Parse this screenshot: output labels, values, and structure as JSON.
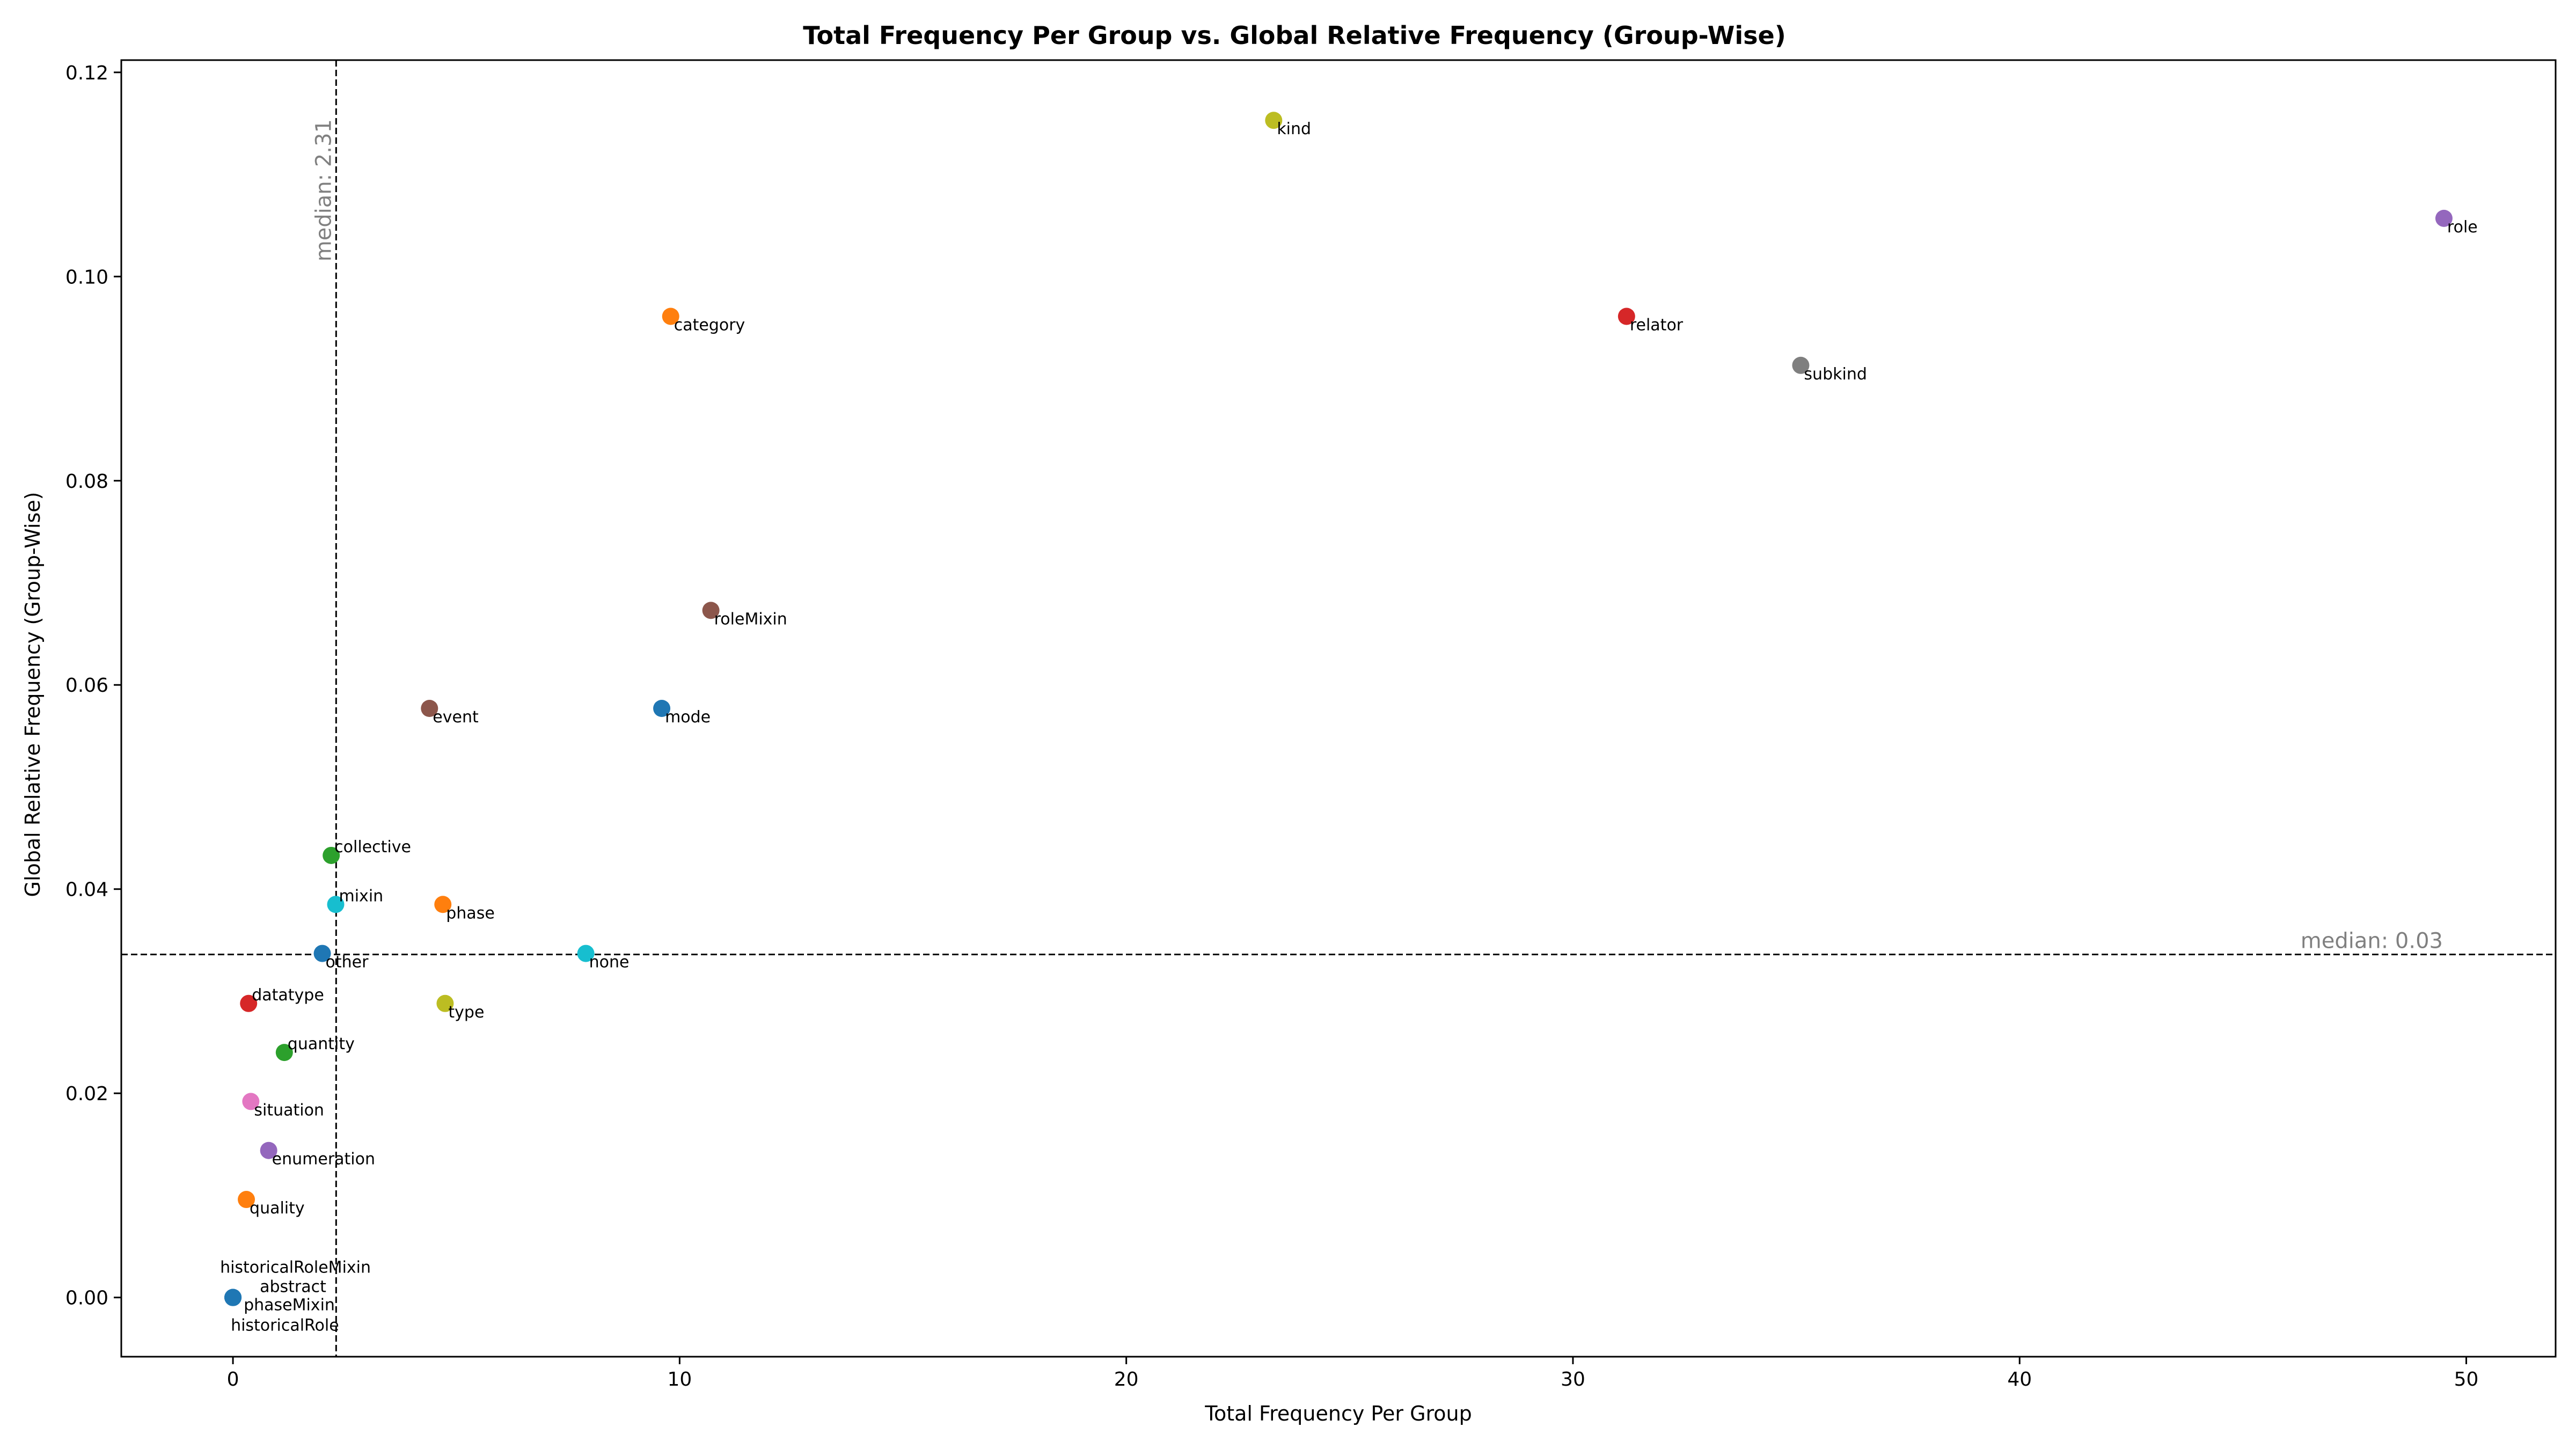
{
  "chart_data": {
    "type": "scatter",
    "title": "Total Frequency Per Group vs. Global Relative Frequency (Group-Wise)",
    "xlabel": "Total Frequency Per Group",
    "ylabel": "Global Relative Frequency (Group-Wise)",
    "xlim": [
      -2.5,
      52
    ],
    "ylim": [
      -0.0058,
      0.1212
    ],
    "xticks": [
      0,
      10,
      20,
      30,
      40,
      50
    ],
    "yticks": [
      0.0,
      0.02,
      0.04,
      0.06,
      0.08,
      0.1,
      0.12
    ],
    "ytick_labels": [
      "0.00",
      "0.02",
      "0.04",
      "0.06",
      "0.08",
      "0.10",
      "0.12"
    ],
    "grid": false,
    "median_x": {
      "value": 2.31,
      "label": "median: 2.31"
    },
    "median_y": {
      "value": 0.0336,
      "label": "median: 0.03"
    },
    "points": [
      {
        "label": "kind",
        "x": 23.3,
        "y": 0.1153,
        "color": "#bcbd22"
      },
      {
        "label": "role",
        "x": 49.5,
        "y": 0.1057,
        "color": "#9467bd"
      },
      {
        "label": "category",
        "x": 9.8,
        "y": 0.0961,
        "color": "#ff7f0e"
      },
      {
        "label": "relator",
        "x": 31.2,
        "y": 0.0961,
        "color": "#d62728"
      },
      {
        "label": "subkind",
        "x": 35.1,
        "y": 0.0913,
        "color": "#7f7f7f"
      },
      {
        "label": "roleMixin",
        "x": 10.7,
        "y": 0.0673,
        "color": "#8c564b"
      },
      {
        "label": "event",
        "x": 4.4,
        "y": 0.0577,
        "color": "#8c564b"
      },
      {
        "label": "mode",
        "x": 9.6,
        "y": 0.0577,
        "color": "#1f77b4"
      },
      {
        "label": "collective",
        "x": 2.2,
        "y": 0.0433,
        "color": "#2ca02c"
      },
      {
        "label": "mixin",
        "x": 2.3,
        "y": 0.0385,
        "color": "#17becf"
      },
      {
        "label": "phase",
        "x": 4.7,
        "y": 0.0385,
        "color": "#ff7f0e"
      },
      {
        "label": "other",
        "x": 2.0,
        "y": 0.0337,
        "color": "#1f77b4",
        "label_color": "#d62728"
      },
      {
        "label": "none",
        "x": 7.9,
        "y": 0.0337,
        "color": "#17becf",
        "label_color": "#0000ff"
      },
      {
        "label": "datatype",
        "x": 0.35,
        "y": 0.0288,
        "color": "#d62728"
      },
      {
        "label": "type",
        "x": 4.75,
        "y": 0.0288,
        "color": "#bcbd22"
      },
      {
        "label": "quantity",
        "x": 1.15,
        "y": 0.024,
        "color": "#2ca02c"
      },
      {
        "label": "situation",
        "x": 0.4,
        "y": 0.0192,
        "color": "#e377c2"
      },
      {
        "label": "enumeration",
        "x": 0.8,
        "y": 0.0144,
        "color": "#9467bd"
      },
      {
        "label": "quality",
        "x": 0.3,
        "y": 0.0096,
        "color": "#ff7f0e"
      },
      {
        "label": "historicalRoleMixin",
        "x": 0,
        "y": 0,
        "color": "#1f77b4"
      },
      {
        "label": "abstract",
        "x": 0,
        "y": 0,
        "color": "#1f77b4"
      },
      {
        "label": "phaseMixin",
        "x": 0,
        "y": 0,
        "color": "#1f77b4"
      },
      {
        "label": "historicalRole",
        "x": 0,
        "y": 0,
        "color": "#1f77b4"
      }
    ]
  }
}
